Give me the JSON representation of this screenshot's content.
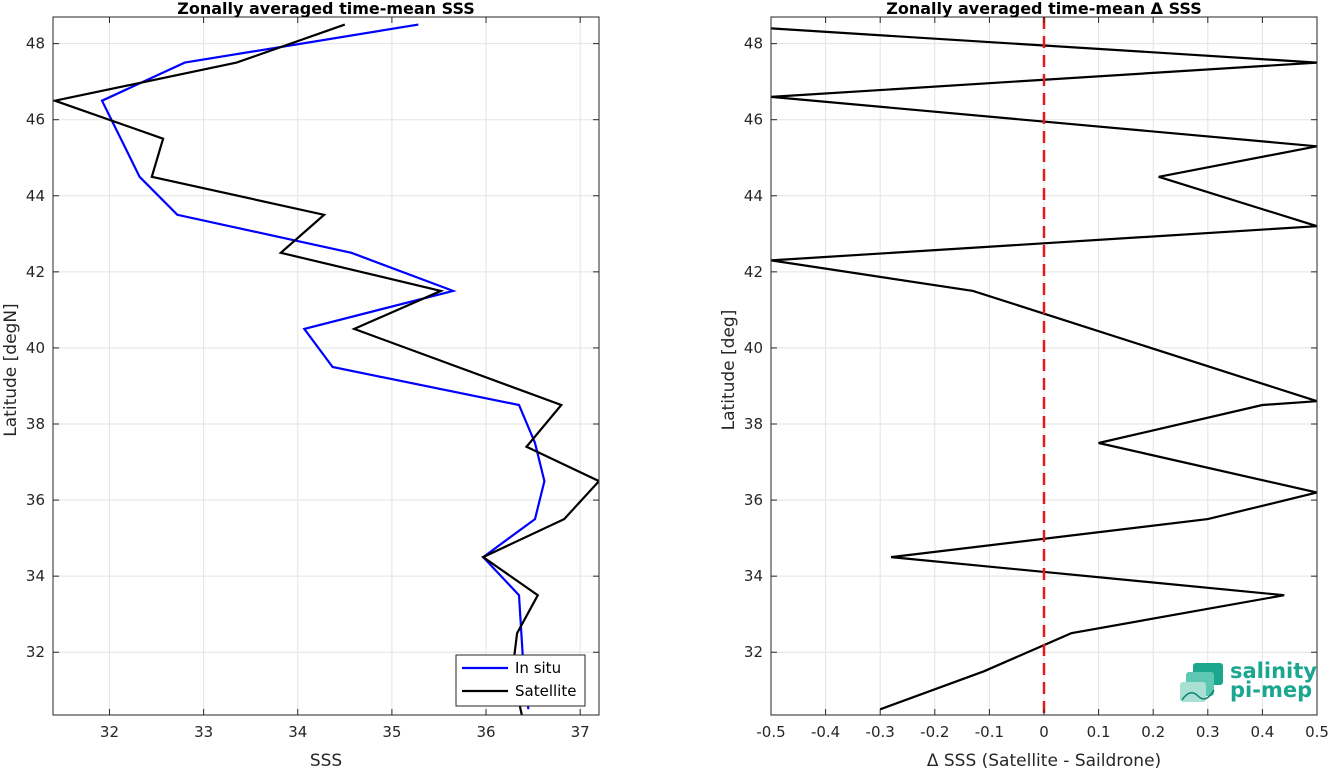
{
  "chart_data": [
    {
      "type": "line",
      "title": "Zonally averaged time-mean SSS",
      "xlabel": "SSS",
      "ylabel": "Latitude [degN]",
      "xlim": [
        31.4,
        37.2
      ],
      "ylim": [
        30.35,
        48.7
      ],
      "xticks": [
        32,
        33,
        34,
        35,
        36,
        37
      ],
      "yticks": [
        32,
        34,
        36,
        38,
        40,
        42,
        44,
        46,
        48
      ],
      "grid": true,
      "legend_position": "bottom-right",
      "series": [
        {
          "name": "In situ",
          "color": "#0000ff",
          "x": [
            36.45,
            36.4,
            36.35,
            35.97,
            36.52,
            36.62,
            36.52,
            36.35,
            34.37,
            34.07,
            35.65,
            34.57,
            32.72,
            32.32,
            32.12,
            31.92,
            32.8,
            35.28
          ],
          "y": [
            30.5,
            31.5,
            33.5,
            34.5,
            35.5,
            36.5,
            37.5,
            38.5,
            39.5,
            40.5,
            41.5,
            42.5,
            43.5,
            44.5,
            45.5,
            46.5,
            47.5,
            48.5
          ]
        },
        {
          "name": "Satellite",
          "color": "#000000",
          "x": [
            36.38,
            36.28,
            36.33,
            36.55,
            35.97,
            36.83,
            37.2,
            36.43,
            36.8,
            34.6,
            35.52,
            33.82,
            34.28,
            32.45,
            32.57,
            31.42,
            33.35,
            34.5
          ],
          "y": [
            30.35,
            31.5,
            32.5,
            33.5,
            34.5,
            35.5,
            36.5,
            37.4,
            38.5,
            40.5,
            41.5,
            42.5,
            43.5,
            44.5,
            45.5,
            46.5,
            47.5,
            48.5
          ]
        }
      ]
    },
    {
      "type": "line",
      "title": "Zonally averaged time-mean Δ SSS",
      "xlabel": "Δ SSS (Satellite - Saildrone)",
      "ylabel": "Latitude [deg]",
      "xlim": [
        -0.5,
        0.5
      ],
      "ylim": [
        30.35,
        48.7
      ],
      "xticks": [
        -0.5,
        -0.4,
        -0.3,
        -0.2,
        -0.1,
        0,
        0.1,
        0.2,
        0.3,
        0.4,
        0.5
      ],
      "xtick_labels": [
        "-0.5",
        "-0.4",
        "-0.3",
        "-0.2",
        "-0.1",
        "0",
        "0.1",
        "0.2",
        "0.3",
        "0.4",
        "0.5"
      ],
      "yticks": [
        32,
        34,
        36,
        38,
        40,
        42,
        44,
        46,
        48
      ],
      "grid": true,
      "reference_line": {
        "x": 0,
        "color": "#e41a1c",
        "style": "dashed"
      },
      "series": [
        {
          "color": "#000000",
          "x": [
            -0.3,
            -0.11,
            0.05,
            0.44,
            -0.28,
            0.3,
            0.5,
            0.1,
            0.4,
            0.5,
            -0.13,
            -0.5,
            0.5,
            0.21,
            0.5,
            -0.5,
            0.5,
            -0.5
          ],
          "y": [
            30.5,
            31.5,
            32.5,
            33.5,
            34.5,
            35.5,
            36.2,
            37.5,
            38.5,
            38.6,
            41.5,
            42.3,
            43.2,
            44.5,
            45.3,
            46.6,
            47.5,
            48.4
          ],
          "clip": [
            {
              "start": -0.5,
              "end": 0.5
            }
          ]
        }
      ]
    }
  ],
  "left_legend": {
    "items": [
      "In situ",
      "Satellite"
    ]
  },
  "logo": {
    "line1": "salinity",
    "line2": "pi-mep"
  }
}
